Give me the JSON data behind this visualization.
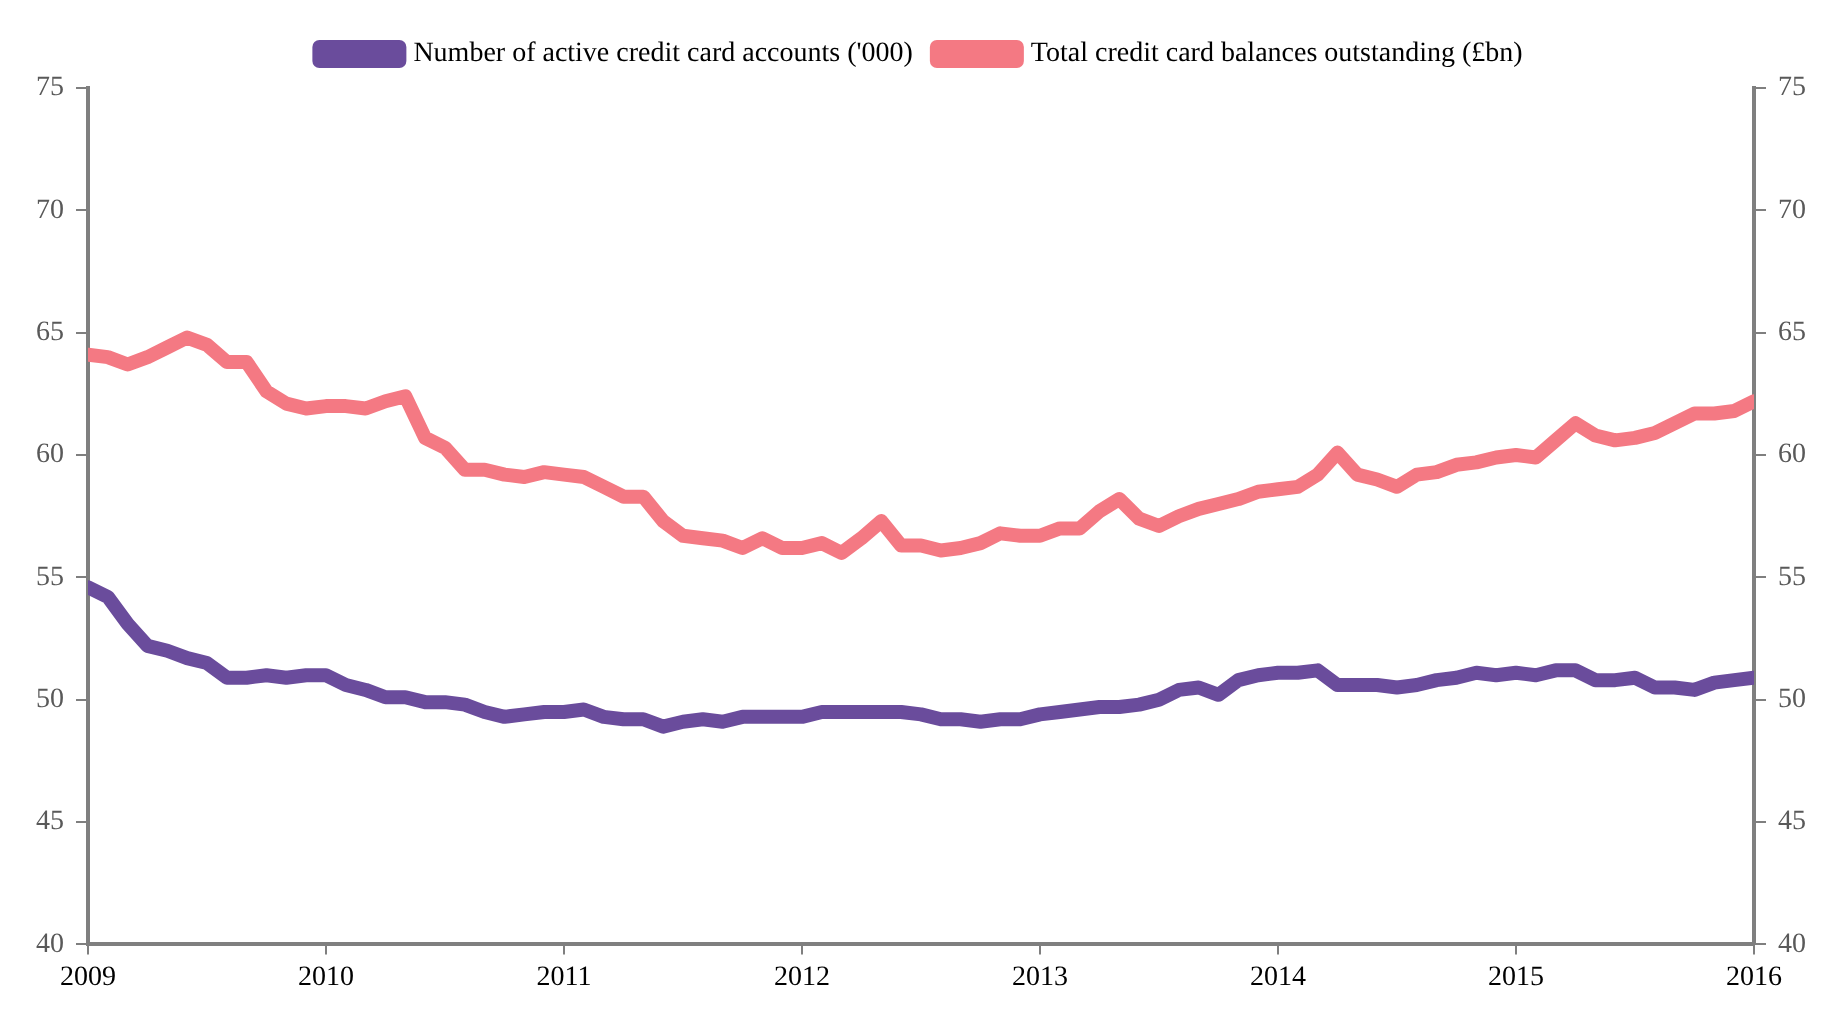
{
  "chart_data": {
    "type": "line",
    "xlim": [
      "2009",
      "2016"
    ],
    "xticks": [
      "2009",
      "2010",
      "2011",
      "2012",
      "2013",
      "2014",
      "2015",
      "2016"
    ],
    "ylim": [
      40,
      75
    ],
    "yticks": [
      40,
      45,
      50,
      55,
      60,
      65,
      70,
      75
    ],
    "y2lim": [
      40,
      75
    ],
    "y2ticks": [
      40,
      45,
      50,
      55,
      60,
      65,
      70,
      75
    ],
    "legend": "top",
    "grid": false,
    "marker": "none",
    "line_style": "solid",
    "x": [
      "2009-01",
      "2009-02",
      "2009-03",
      "2009-04",
      "2009-05",
      "2009-06",
      "2009-07",
      "2009-08",
      "2009-09",
      "2009-10",
      "2009-11",
      "2009-12",
      "2010-01",
      "2010-02",
      "2010-03",
      "2010-04",
      "2010-05",
      "2010-06",
      "2010-07",
      "2010-08",
      "2010-09",
      "2010-10",
      "2010-11",
      "2010-12",
      "2011-01",
      "2011-02",
      "2011-03",
      "2011-04",
      "2011-05",
      "2011-06",
      "2011-07",
      "2011-08",
      "2011-09",
      "2011-10",
      "2011-11",
      "2011-12",
      "2012-01",
      "2012-02",
      "2012-03",
      "2012-04",
      "2012-05",
      "2012-06",
      "2012-07",
      "2012-08",
      "2012-09",
      "2012-10",
      "2012-11",
      "2012-12",
      "2013-01",
      "2013-02",
      "2013-03",
      "2013-04",
      "2013-05",
      "2013-06",
      "2013-07",
      "2013-08",
      "2013-09",
      "2013-10",
      "2013-11",
      "2013-12",
      "2014-01",
      "2014-02",
      "2014-03",
      "2014-04",
      "2014-05",
      "2014-06",
      "2014-07",
      "2014-08",
      "2014-09",
      "2014-10",
      "2014-11",
      "2014-12",
      "2015-01",
      "2015-02",
      "2015-03",
      "2015-04",
      "2015-05",
      "2015-06",
      "2015-07",
      "2015-08",
      "2015-09",
      "2015-10",
      "2015-11",
      "2015-12",
      "2016-01"
    ],
    "series": [
      {
        "name": "Number of active credit card accounts ('000)",
        "color": "#6a4c9c",
        "values": [
          54.6,
          54.2,
          53.1,
          52.2,
          52.0,
          51.7,
          51.5,
          50.9,
          50.9,
          51.0,
          50.9,
          51.0,
          51.0,
          50.6,
          50.4,
          50.1,
          50.1,
          49.9,
          49.9,
          49.8,
          49.5,
          49.3,
          49.4,
          49.5,
          49.5,
          49.6,
          49.3,
          49.2,
          49.2,
          48.9,
          49.1,
          49.2,
          49.1,
          49.3,
          49.3,
          49.3,
          49.3,
          49.5,
          49.5,
          49.5,
          49.5,
          49.5,
          49.4,
          49.2,
          49.2,
          49.1,
          49.2,
          49.2,
          49.4,
          49.5,
          49.6,
          49.7,
          49.7,
          49.8,
          50.0,
          50.4,
          50.5,
          50.2,
          50.8,
          51.0,
          51.1,
          51.1,
          51.2,
          50.6,
          50.6,
          50.6,
          50.5,
          50.6,
          50.8,
          50.9,
          51.1,
          51.0,
          51.1,
          51.0,
          51.2,
          51.2,
          50.8,
          50.8,
          50.9,
          50.5,
          50.5,
          50.4,
          50.7,
          50.8,
          50.9
        ]
      },
      {
        "name": "Total credit card balances outstanding (£bn)",
        "color": "#f47983",
        "values": [
          64.1,
          64.0,
          63.7,
          64.0,
          64.4,
          64.8,
          64.5,
          63.8,
          63.8,
          62.6,
          62.1,
          61.9,
          62.0,
          62.0,
          61.9,
          62.2,
          62.4,
          60.7,
          60.3,
          59.4,
          59.4,
          59.2,
          59.1,
          59.3,
          59.2,
          59.1,
          58.7,
          58.3,
          58.3,
          57.3,
          56.7,
          56.6,
          56.5,
          56.2,
          56.6,
          56.2,
          56.2,
          56.4,
          56.0,
          56.6,
          57.3,
          56.3,
          56.3,
          56.1,
          56.2,
          56.4,
          56.8,
          56.7,
          56.7,
          57.0,
          57.0,
          57.7,
          58.2,
          57.4,
          57.1,
          57.5,
          57.8,
          58.0,
          58.2,
          58.5,
          58.6,
          58.7,
          59.2,
          60.1,
          59.2,
          59.0,
          58.7,
          59.2,
          59.3,
          59.6,
          59.7,
          59.9,
          60.0,
          59.9,
          60.6,
          61.3,
          60.8,
          60.6,
          60.7,
          60.9,
          61.3,
          61.7,
          61.7,
          61.8,
          62.2
        ]
      }
    ]
  }
}
